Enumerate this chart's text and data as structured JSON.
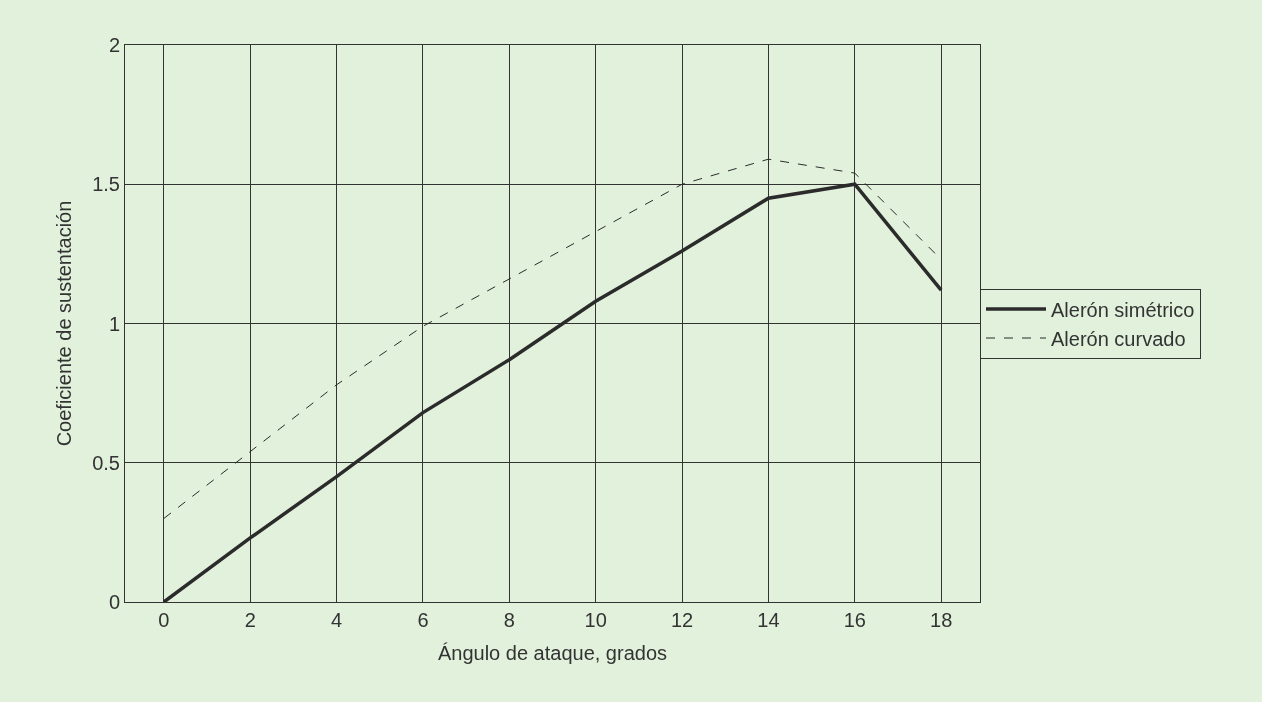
{
  "chart_data": {
    "type": "line",
    "xlabel": "Ángulo de ataque, grados",
    "ylabel": "Coeficiente de sustentación",
    "x": [
      0,
      2,
      4,
      6,
      8,
      10,
      12,
      14,
      16,
      18
    ],
    "series": [
      {
        "name": "Alerón simétrico",
        "color": "#2b2b2b",
        "line_style": "solid",
        "values": [
          0,
          0.23,
          0.45,
          0.68,
          0.87,
          1.08,
          1.26,
          1.45,
          1.5,
          1.12
        ]
      },
      {
        "name": "Alerón curvado",
        "color": "#2b2b2b",
        "line_style": "dashed",
        "values": [
          0.3,
          0.54,
          0.78,
          0.99,
          1.16,
          1.33,
          1.5,
          1.59,
          1.54,
          1.23
        ]
      }
    ],
    "xlim": [
      -0.9,
      18.9
    ],
    "xticks": [
      0,
      2,
      4,
      6,
      8,
      10,
      12,
      14,
      16,
      18
    ],
    "ylim": [
      0,
      2
    ],
    "yticks": [
      0,
      0.5,
      1,
      1.5,
      2
    ],
    "grid": true,
    "legend": "right",
    "marker": "none"
  }
}
